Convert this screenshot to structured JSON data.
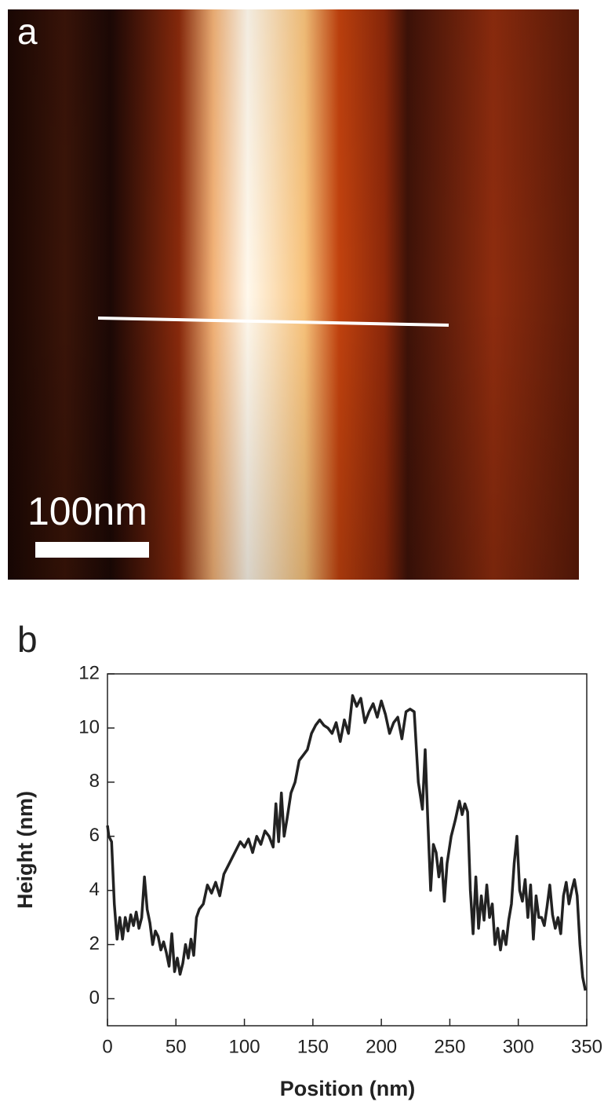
{
  "image_panel": {
    "label": "a",
    "scale_bar": "100nm"
  },
  "chart_data": {
    "type": "line",
    "panel_label": "b",
    "x_label": "Position (nm)",
    "y_label": "Height (nm)",
    "color": "#222222",
    "xlim": [
      0,
      350
    ],
    "ylim": [
      -1,
      12
    ],
    "xticks": [
      0,
      50,
      100,
      150,
      200,
      250,
      300,
      350
    ],
    "yticks": [
      0,
      2,
      4,
      6,
      8,
      10,
      12
    ],
    "x": [
      0,
      1,
      3,
      5,
      7,
      9,
      11,
      13,
      15,
      17,
      19,
      21,
      23,
      25,
      27,
      29,
      31,
      33,
      35,
      37,
      39,
      41,
      43,
      45,
      47,
      49,
      51,
      53,
      55,
      57,
      59,
      61,
      63,
      65,
      67,
      70,
      73,
      76,
      79,
      82,
      85,
      88,
      91,
      94,
      97,
      100,
      103,
      106,
      109,
      112,
      115,
      118,
      121,
      123,
      125,
      127,
      129,
      131,
      134,
      137,
      140,
      143,
      146,
      149,
      152,
      155,
      158,
      161,
      164,
      167,
      170,
      173,
      176,
      179,
      182,
      185,
      188,
      191,
      194,
      197,
      200,
      203,
      206,
      209,
      212,
      215,
      218,
      221,
      224,
      227,
      230,
      232,
      234,
      236,
      238,
      240,
      242,
      244,
      246,
      248,
      251,
      254,
      257,
      259,
      261,
      263,
      265,
      267,
      269,
      271,
      273,
      275,
      277,
      279,
      281,
      283,
      285,
      287,
      289,
      291,
      293,
      295,
      297,
      299,
      301,
      303,
      305,
      307,
      309,
      311,
      313,
      315,
      317,
      319,
      321,
      323,
      325,
      327,
      329,
      331,
      333,
      335,
      337,
      339,
      341,
      343,
      345,
      347,
      349
    ],
    "values": [
      6.4,
      6.0,
      5.8,
      3.5,
      2.2,
      3.0,
      2.2,
      3.0,
      2.5,
      3.1,
      2.7,
      3.2,
      2.6,
      3.0,
      4.5,
      3.3,
      2.8,
      2.0,
      2.5,
      2.3,
      1.8,
      2.1,
      1.7,
      1.2,
      2.4,
      1.0,
      1.5,
      0.9,
      1.3,
      2.0,
      1.5,
      2.2,
      1.6,
      3.0,
      3.3,
      3.5,
      4.2,
      3.9,
      4.3,
      3.8,
      4.6,
      4.9,
      5.2,
      5.5,
      5.8,
      5.6,
      5.9,
      5.4,
      6.0,
      5.7,
      6.2,
      6.0,
      5.6,
      7.2,
      5.8,
      7.6,
      6.0,
      6.6,
      7.6,
      8.0,
      8.8,
      9.0,
      9.2,
      9.8,
      10.1,
      10.3,
      10.1,
      10.0,
      9.8,
      10.2,
      9.5,
      10.3,
      9.8,
      11.2,
      10.8,
      11.1,
      10.2,
      10.6,
      10.9,
      10.4,
      11.0,
      10.5,
      9.8,
      10.2,
      10.4,
      9.6,
      10.6,
      10.7,
      10.6,
      8.0,
      7.0,
      9.2,
      6.5,
      4.0,
      5.7,
      5.4,
      4.5,
      5.2,
      3.6,
      5.0,
      6.0,
      6.6,
      7.3,
      6.8,
      7.2,
      6.9,
      4.0,
      2.4,
      4.5,
      2.6,
      3.8,
      2.9,
      4.2,
      3.0,
      3.5,
      2.0,
      2.6,
      1.8,
      2.5,
      2.0,
      2.9,
      3.5,
      5.0,
      6.0,
      4.0,
      3.6,
      4.4,
      3.0,
      4.2,
      2.2,
      3.8,
      3.0,
      3.0,
      2.7,
      3.4,
      4.2,
      3.1,
      2.6,
      3.0,
      2.4,
      3.8,
      4.3,
      3.5,
      4.0,
      4.4,
      3.8,
      2.0,
      0.8,
      0.3
    ]
  }
}
